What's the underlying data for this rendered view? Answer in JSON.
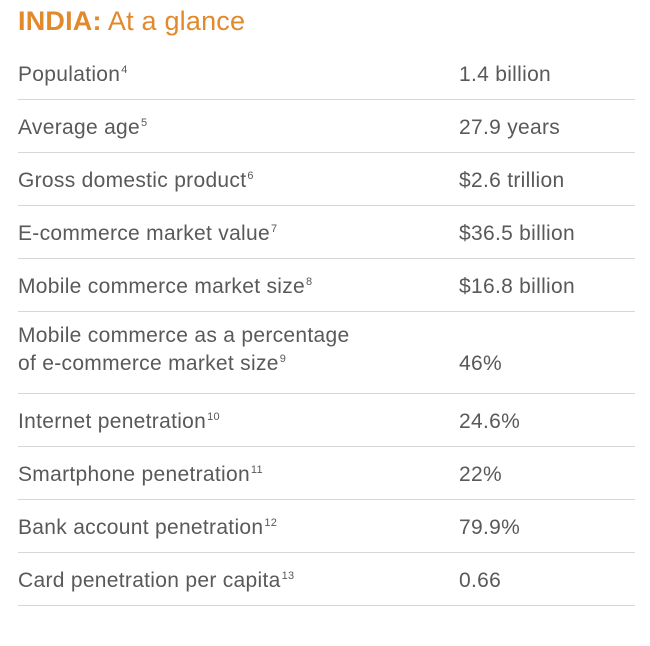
{
  "title": {
    "country": "INDIA:",
    "rest": " At a glance"
  },
  "rows": [
    {
      "label": "Population",
      "note": "4",
      "value": "1.4 billion"
    },
    {
      "label": "Average age",
      "note": "5",
      "value": "27.9 years"
    },
    {
      "label": "Gross domestic product",
      "note": "6",
      "value": "$2.6 trillion"
    },
    {
      "label": "E-commerce market value",
      "note": "7",
      "value": "$36.5 billion"
    },
    {
      "label": "Mobile commerce market size",
      "note": "8",
      "value": "$16.8 billion"
    },
    {
      "label_line1": "Mobile commerce as a percentage",
      "label_line2": "of e-commerce market size",
      "note": "9",
      "value": "46%"
    },
    {
      "label": "Internet penetration",
      "note": "10",
      "value": "24.6%"
    },
    {
      "label": "Smartphone penetration",
      "note": "11",
      "value": "22%"
    },
    {
      "label": "Bank account penetration",
      "note": "12",
      "value": "79.9%"
    },
    {
      "label": "Card penetration per capita",
      "note": "13",
      "value": "0.66"
    }
  ],
  "colors": {
    "title": "#e2892c",
    "text": "#58595b",
    "rule": "#d7d7d7"
  }
}
